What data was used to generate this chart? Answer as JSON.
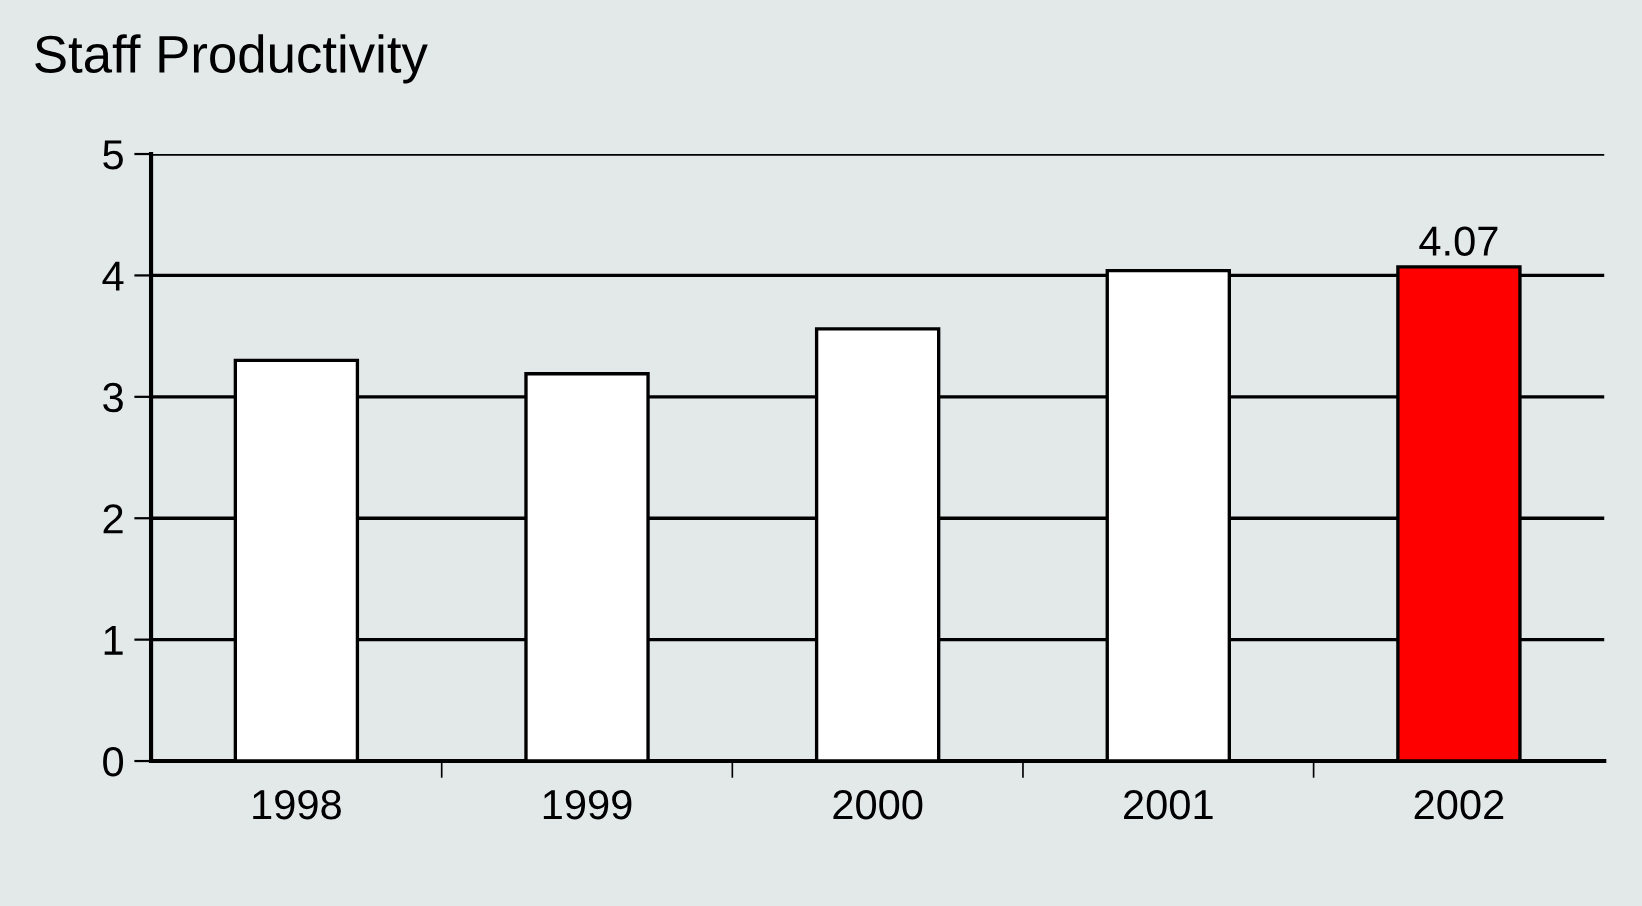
{
  "chart_data": {
    "type": "bar",
    "title": "Staff Productivity",
    "categories": [
      "1998",
      "1999",
      "2000",
      "2001",
      "2002"
    ],
    "values": [
      3.3,
      3.19,
      3.56,
      4.04,
      4.07
    ],
    "colors": [
      "#ffffff",
      "#ffffff",
      "#ffffff",
      "#ffffff",
      "#ff0000"
    ],
    "value_labels": [
      null,
      null,
      null,
      null,
      "4.07"
    ],
    "ylim": [
      0,
      5
    ],
    "yticks": [
      0,
      1,
      2,
      3,
      4,
      5
    ],
    "grid": "y",
    "legend": false
  }
}
